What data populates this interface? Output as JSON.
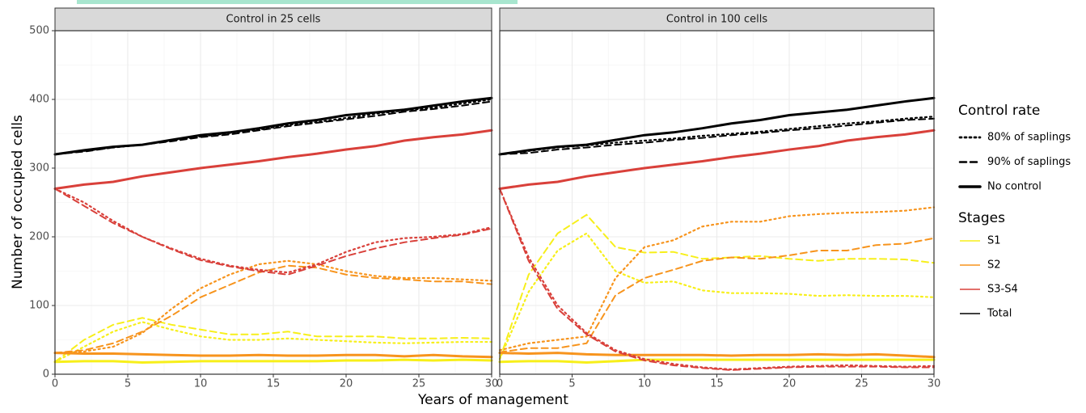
{
  "x_label": "Years of management",
  "y_label": "Number of occupied cells",
  "legend": {
    "control": {
      "title": "Control rate",
      "items": [
        {
          "label": "80% of saplings",
          "dash": "2 4",
          "width": 2.2
        },
        {
          "label": "90% of saplings",
          "dash": "8 5",
          "width": 2
        },
        {
          "label": "No control",
          "dash": "none",
          "width": 3
        }
      ]
    },
    "stages": {
      "title": "Stages",
      "items": [
        {
          "label": "S1",
          "color": "#f7ef1a"
        },
        {
          "label": "S2",
          "color": "#f7941d"
        },
        {
          "label": "S3-S4",
          "color": "#d9403a"
        },
        {
          "label": "Total",
          "color": "#000000"
        }
      ]
    }
  },
  "chart_data": [
    {
      "type": "line",
      "title": "Control in 25 cells",
      "x": [
        0,
        2,
        4,
        6,
        8,
        10,
        12,
        14,
        16,
        18,
        20,
        22,
        24,
        26,
        28,
        30
      ],
      "xlim": [
        0,
        30
      ],
      "xticks": [
        0,
        5,
        10,
        15,
        20,
        25,
        30
      ],
      "ylim": [
        0,
        500
      ],
      "yticks": [
        0,
        100,
        200,
        300,
        400,
        500
      ],
      "grid": true,
      "series": [
        {
          "name": "S1",
          "control": "No control",
          "color": "#f7ef1a",
          "values": [
            18,
            19,
            19,
            17,
            18,
            19,
            19,
            19,
            19,
            19,
            20,
            20,
            21,
            20,
            21,
            20
          ]
        },
        {
          "name": "S1",
          "control": "80% of saplings",
          "color": "#f7ef1a",
          "values": [
            18,
            40,
            62,
            76,
            65,
            55,
            50,
            50,
            52,
            50,
            48,
            46,
            45,
            46,
            47,
            47
          ]
        },
        {
          "name": "S1",
          "control": "90% of saplings",
          "color": "#f7ef1a",
          "values": [
            18,
            50,
            72,
            82,
            72,
            65,
            58,
            58,
            62,
            55,
            55,
            55,
            52,
            52,
            53,
            52
          ]
        },
        {
          "name": "S2",
          "control": "No control",
          "color": "#f7941d",
          "values": [
            31,
            30,
            30,
            29,
            28,
            27,
            27,
            28,
            27,
            27,
            28,
            28,
            26,
            28,
            26,
            25
          ]
        },
        {
          "name": "S2",
          "control": "80% of saplings",
          "color": "#f7941d",
          "values": [
            31,
            33,
            40,
            60,
            95,
            125,
            145,
            160,
            165,
            160,
            150,
            143,
            140,
            140,
            138,
            136
          ]
        },
        {
          "name": "S2",
          "control": "90% of saplings",
          "color": "#f7941d",
          "values": [
            31,
            35,
            45,
            62,
            85,
            112,
            130,
            148,
            158,
            155,
            145,
            140,
            138,
            135,
            135,
            131
          ]
        },
        {
          "name": "S3-S4",
          "control": "No control",
          "color": "#d9403a",
          "values": [
            270,
            276,
            280,
            288,
            294,
            300,
            305,
            310,
            316,
            321,
            327,
            332,
            340,
            345,
            349,
            355
          ]
        },
        {
          "name": "S3-S4",
          "control": "80% of saplings",
          "color": "#d9403a",
          "values": [
            270,
            250,
            223,
            200,
            183,
            168,
            158,
            152,
            148,
            160,
            178,
            192,
            198,
            200,
            204,
            214
          ]
        },
        {
          "name": "S3-S4",
          "control": "90% of saplings",
          "color": "#d9403a",
          "values": [
            270,
            245,
            220,
            200,
            182,
            166,
            157,
            150,
            145,
            158,
            172,
            183,
            192,
            198,
            203,
            212
          ]
        },
        {
          "name": "Total",
          "control": "No control",
          "color": "#000000",
          "values": [
            320,
            326,
            331,
            334,
            341,
            348,
            352,
            358,
            365,
            370,
            377,
            381,
            385,
            391,
            397,
            402
          ]
        },
        {
          "name": "Total",
          "control": "80% of saplings",
          "color": "#000000",
          "values": [
            320,
            325,
            330,
            334,
            340,
            346,
            351,
            356,
            363,
            367,
            373,
            379,
            384,
            388,
            394,
            400
          ]
        },
        {
          "name": "Total",
          "control": "90% of saplings",
          "color": "#000000",
          "values": [
            320,
            324,
            330,
            334,
            339,
            345,
            349,
            355,
            361,
            366,
            371,
            376,
            382,
            386,
            391,
            397
          ]
        }
      ]
    },
    {
      "type": "line",
      "title": "Control in 100 cells",
      "x": [
        0,
        2,
        4,
        6,
        8,
        10,
        12,
        14,
        16,
        18,
        20,
        22,
        24,
        26,
        28,
        30
      ],
      "xlim": [
        0,
        30
      ],
      "xticks": [
        0,
        5,
        10,
        15,
        20,
        25,
        30
      ],
      "ylim": [
        0,
        500
      ],
      "yticks": [
        0,
        100,
        200,
        300,
        400,
        500
      ],
      "grid": true,
      "series": [
        {
          "name": "S1",
          "control": "No control",
          "color": "#f7ef1a",
          "values": [
            18,
            19,
            19,
            17,
            19,
            21,
            21,
            21,
            21,
            21,
            21,
            21,
            21,
            21,
            21,
            21
          ]
        },
        {
          "name": "S1",
          "control": "80% of saplings",
          "color": "#f7ef1a",
          "values": [
            22,
            120,
            180,
            205,
            150,
            133,
            135,
            122,
            118,
            118,
            117,
            114,
            115,
            114,
            114,
            112
          ]
        },
        {
          "name": "S1",
          "control": "90% of saplings",
          "color": "#f7ef1a",
          "values": [
            22,
            145,
            205,
            232,
            185,
            177,
            178,
            168,
            170,
            172,
            168,
            165,
            168,
            168,
            167,
            162
          ]
        },
        {
          "name": "S2",
          "control": "No control",
          "color": "#f7941d",
          "values": [
            31,
            30,
            31,
            29,
            28,
            28,
            28,
            28,
            27,
            28,
            28,
            29,
            28,
            29,
            27,
            25
          ]
        },
        {
          "name": "S2",
          "control": "80% of saplings",
          "color": "#f7941d",
          "values": [
            35,
            45,
            50,
            55,
            140,
            185,
            195,
            215,
            222,
            222,
            230,
            233,
            235,
            236,
            238,
            243
          ]
        },
        {
          "name": "S2",
          "control": "90% of saplings",
          "color": "#f7941d",
          "values": [
            32,
            38,
            38,
            45,
            115,
            140,
            152,
            165,
            170,
            168,
            173,
            180,
            180,
            188,
            190,
            198
          ]
        },
        {
          "name": "S3-S4",
          "control": "No control",
          "color": "#d9403a",
          "values": [
            270,
            276,
            280,
            288,
            294,
            300,
            305,
            310,
            316,
            321,
            327,
            332,
            340,
            345,
            349,
            355
          ]
        },
        {
          "name": "S3-S4",
          "control": "80% of saplings",
          "color": "#d9403a",
          "values": [
            270,
            170,
            100,
            60,
            35,
            22,
            15,
            10,
            7,
            9,
            11,
            12,
            13,
            12,
            11,
            12
          ]
        },
        {
          "name": "S3-S4",
          "control": "90% of saplings",
          "color": "#d9403a",
          "values": [
            270,
            165,
            95,
            58,
            33,
            20,
            13,
            9,
            6,
            8,
            10,
            11,
            11,
            11,
            10,
            10
          ]
        },
        {
          "name": "Total",
          "control": "No control",
          "color": "#000000",
          "values": [
            320,
            326,
            331,
            334,
            341,
            348,
            352,
            358,
            365,
            370,
            377,
            381,
            385,
            391,
            397,
            402
          ]
        },
        {
          "name": "Total",
          "control": "80% of saplings",
          "color": "#000000",
          "values": [
            320,
            325,
            330,
            333,
            337,
            340,
            343,
            347,
            350,
            353,
            357,
            361,
            365,
            368,
            372,
            375
          ]
        },
        {
          "name": "Total",
          "control": "90% of saplings",
          "color": "#000000",
          "values": [
            320,
            322,
            327,
            330,
            334,
            337,
            341,
            344,
            348,
            351,
            355,
            358,
            362,
            366,
            370,
            372
          ]
        }
      ]
    }
  ]
}
